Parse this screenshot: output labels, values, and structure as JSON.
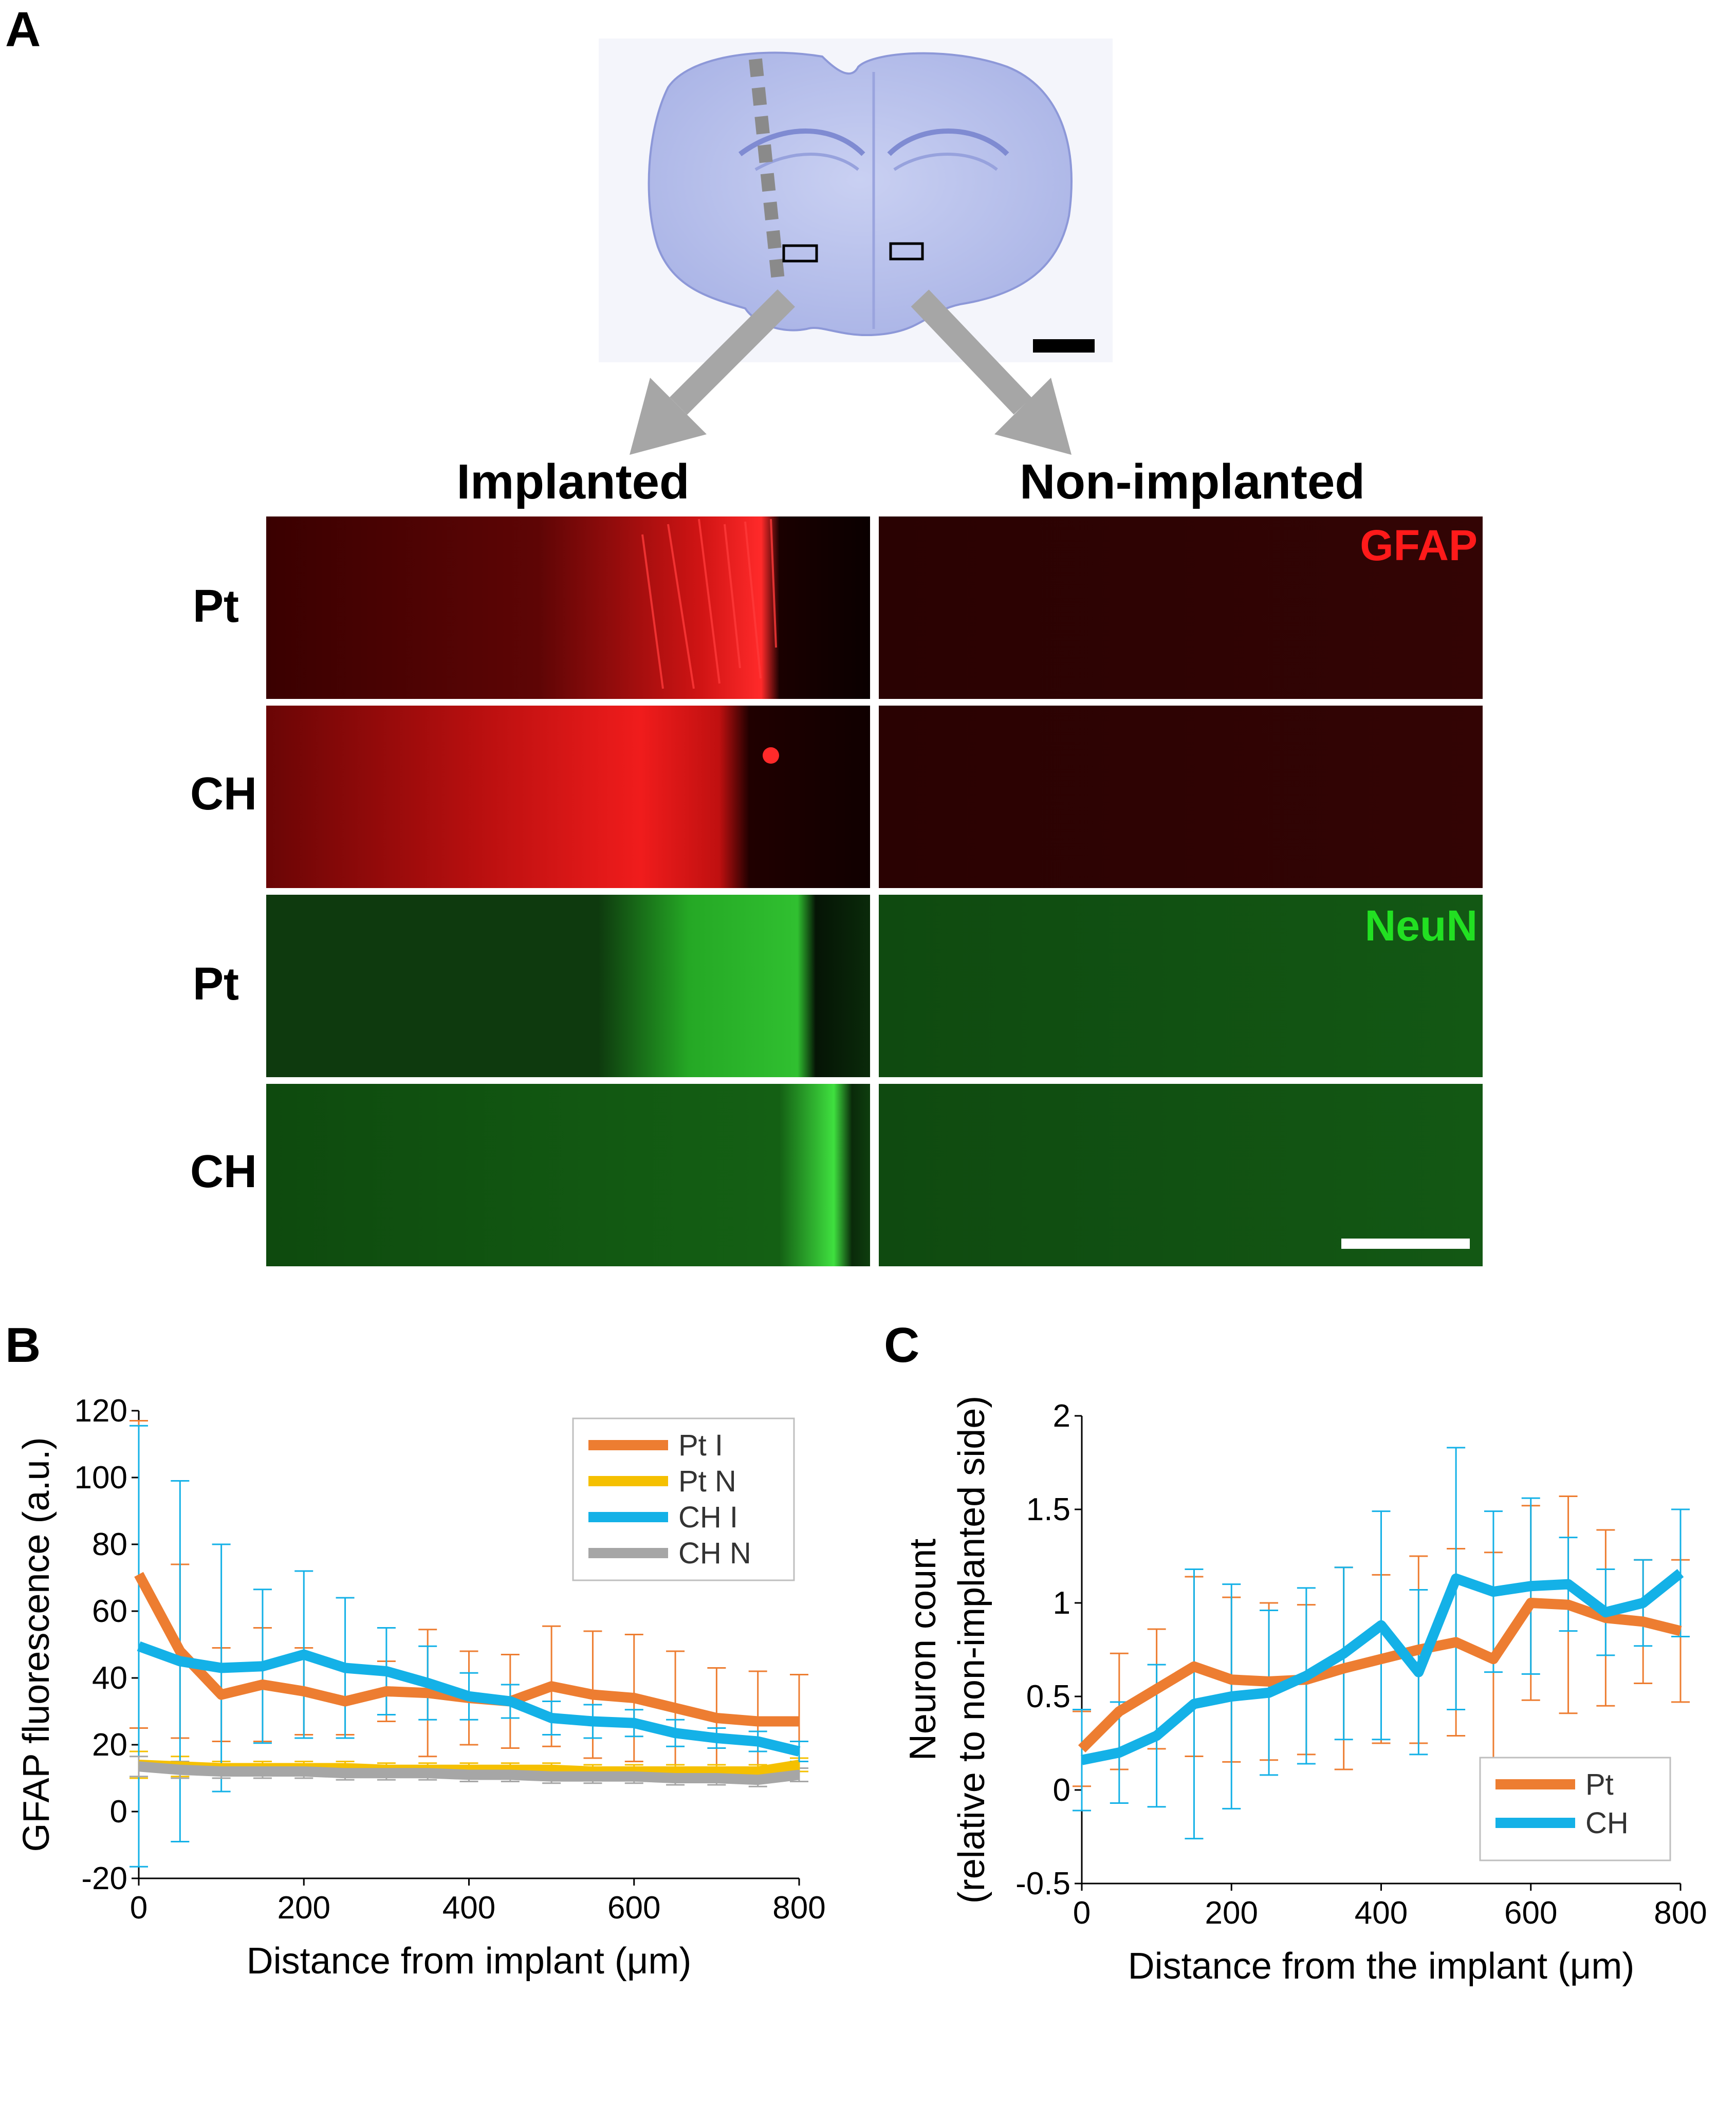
{
  "figure": {
    "panel_a": {
      "letter": "A",
      "col_implanted": "Implanted",
      "col_nonimplanted": "Non-implanted",
      "rows": [
        "Pt",
        "CH",
        "Pt",
        "CH"
      ],
      "stain_gfap": "GFAP",
      "stain_neun": "NeuN",
      "colors": {
        "gfap": "#ff1a1a",
        "neun": "#22e022",
        "brain": "#b9c2ee",
        "arrow": "#a6a6a6"
      }
    },
    "panel_b": {
      "letter": "B"
    },
    "panel_c": {
      "letter": "C"
    }
  },
  "chart_data": [
    {
      "id": "B",
      "type": "line",
      "xlabel": "Distance from implant (μm)",
      "ylabel": "GFAP fluorescence (a.u.)",
      "xlim": [
        0,
        800
      ],
      "ylim": [
        -20,
        120
      ],
      "xticks": [
        0,
        200,
        400,
        600,
        800
      ],
      "yticks": [
        -20,
        0,
        20,
        40,
        60,
        80,
        100,
        120
      ],
      "x": [
        0,
        50,
        100,
        150,
        200,
        250,
        300,
        350,
        400,
        450,
        500,
        550,
        600,
        650,
        700,
        750,
        800
      ],
      "legend_position": "top-right",
      "series": [
        {
          "name": "Pt I",
          "color": "#ed7d31",
          "values": [
            71,
            48,
            35,
            38,
            36,
            33,
            36,
            35.5,
            34,
            33,
            37.5,
            35,
            34,
            31,
            28,
            27,
            27
          ],
          "err": [
            46,
            26,
            14,
            17,
            13,
            10,
            9,
            19,
            14,
            14,
            18,
            19,
            19,
            17,
            15,
            15,
            14
          ]
        },
        {
          "name": "Pt N",
          "color": "#f5c000",
          "values": [
            14,
            13.5,
            13,
            13,
            13,
            13,
            12.5,
            12.5,
            12.5,
            12.5,
            12.5,
            12,
            12,
            12,
            12,
            12,
            14
          ],
          "err": [
            4,
            3,
            2,
            2,
            2,
            2,
            2,
            2,
            2,
            2,
            2,
            2,
            2,
            2,
            2,
            2,
            2
          ]
        },
        {
          "name": "CH I",
          "color": "#14b1e7",
          "values": [
            49.5,
            45,
            43,
            43.5,
            47,
            43,
            42,
            38.5,
            34.5,
            33,
            28,
            27,
            26.5,
            23.5,
            22,
            21,
            18
          ],
          "err": [
            66,
            54,
            37,
            23,
            25,
            21,
            13,
            11,
            7,
            5,
            5,
            5,
            4,
            4,
            3,
            3,
            3
          ]
        },
        {
          "name": "CH N",
          "color": "#a6a6a6",
          "values": [
            13.5,
            12.5,
            12,
            12,
            12,
            11.5,
            11.5,
            11.5,
            11,
            11,
            10.5,
            10.5,
            10.5,
            10,
            10,
            9.5,
            11
          ],
          "err": [
            3,
            2.5,
            2,
            2,
            2,
            2,
            2,
            2,
            2,
            2,
            2,
            2,
            2,
            2,
            2,
            2,
            2
          ]
        }
      ]
    },
    {
      "id": "C",
      "type": "line",
      "xlabel": "Distance from the implant (μm)",
      "ylabel": "Neuron count",
      "ylabel2": "(relative to non-implanted side)",
      "xlim": [
        0,
        800
      ],
      "ylim": [
        -0.5,
        2
      ],
      "xticks": [
        0,
        200,
        400,
        600,
        800
      ],
      "yticks": [
        -0.5,
        0,
        0.5,
        1,
        1.5,
        2
      ],
      "ytick_labels": [
        "-0.5",
        "0",
        "0.5",
        "1",
        "1.5",
        "2"
      ],
      "x": [
        0,
        50,
        100,
        150,
        200,
        250,
        300,
        350,
        400,
        450,
        500,
        550,
        600,
        650,
        700,
        750,
        800
      ],
      "legend_position": "bottom-right",
      "series": [
        {
          "name": "Pt",
          "color": "#ed7d31",
          "values": [
            0.22,
            0.42,
            0.54,
            0.66,
            0.59,
            0.58,
            0.59,
            0.65,
            0.7,
            0.75,
            0.79,
            0.7,
            1.0,
            0.99,
            0.92,
            0.9,
            0.85
          ],
          "err": [
            0.2,
            0.31,
            0.32,
            0.48,
            0.44,
            0.42,
            0.4,
            0.54,
            0.45,
            0.5,
            0.5,
            0.57,
            0.52,
            0.58,
            0.47,
            0.33,
            0.38
          ]
        },
        {
          "name": "CH",
          "color": "#14b1e7",
          "values": [
            0.16,
            0.2,
            0.29,
            0.46,
            0.5,
            0.52,
            0.61,
            0.73,
            0.88,
            0.63,
            1.13,
            1.06,
            1.09,
            1.1,
            0.95,
            1.0,
            1.16
          ],
          "err": [
            0.27,
            0.27,
            0.38,
            0.72,
            0.6,
            0.44,
            0.47,
            0.46,
            0.61,
            0.44,
            0.7,
            0.43,
            0.47,
            0.25,
            0.23,
            0.23,
            0.34
          ]
        }
      ]
    }
  ]
}
